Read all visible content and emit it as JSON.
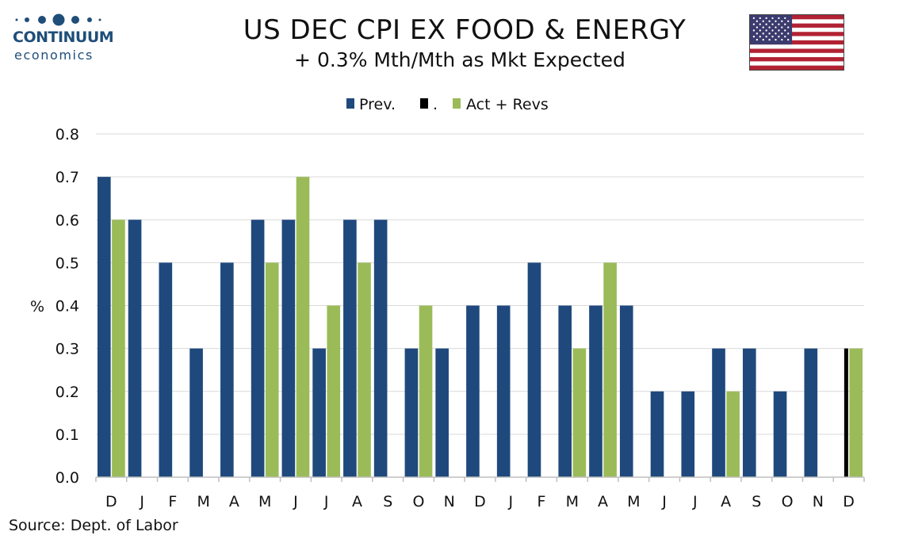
{
  "header": {
    "logo_name": "CONTINUUM",
    "logo_sub": "economics",
    "title": "US DEC CPI EX FOOD & ENERGY",
    "subtitle": "+ 0.3% Mth/Mth as Mkt Expected",
    "flag": "us-flag-icon"
  },
  "footer": {
    "source": "Source: Dept. of Labor"
  },
  "colors": {
    "prev": "#1f497d",
    "marker": "#000000",
    "act": "#9bbb59",
    "grid": "#d9d9d9",
    "axis": "#bfbfbf"
  },
  "chart_data": {
    "type": "bar",
    "ylabel": "%",
    "ylim": [
      0,
      0.8
    ],
    "yticks": [
      "0.0",
      "0.1",
      "0.2",
      "0.3",
      "0.4",
      "0.5",
      "0.6",
      "0.7",
      "0.8"
    ],
    "grid": true,
    "legend_position": "top",
    "categories": [
      "D",
      "J",
      "F",
      "M",
      "A",
      "M",
      "J",
      "J",
      "A",
      "S",
      "O",
      "N",
      "D",
      "J",
      "F",
      "M",
      "A",
      "M",
      "J",
      "J",
      "A",
      "S",
      "O",
      "N",
      "D"
    ],
    "series": [
      {
        "name": "Prev.",
        "color": "#1f497d",
        "values": [
          0.7,
          0.6,
          0.5,
          0.3,
          0.5,
          0.6,
          0.6,
          0.3,
          0.6,
          0.6,
          0.3,
          0.3,
          0.4,
          0.4,
          0.5,
          0.4,
          0.4,
          0.4,
          0.2,
          0.2,
          0.3,
          0.3,
          0.2,
          0.3,
          null
        ]
      },
      {
        "name": ".",
        "color": "#000000",
        "values": [
          null,
          null,
          null,
          null,
          null,
          null,
          null,
          null,
          null,
          null,
          null,
          null,
          null,
          null,
          null,
          null,
          null,
          null,
          null,
          null,
          null,
          null,
          null,
          null,
          0.3
        ]
      },
      {
        "name": "Act + Revs",
        "color": "#9bbb59",
        "values": [
          0.6,
          null,
          null,
          null,
          null,
          0.5,
          0.7,
          0.4,
          0.5,
          null,
          0.4,
          null,
          null,
          null,
          null,
          0.3,
          0.5,
          null,
          null,
          null,
          0.2,
          null,
          null,
          null,
          0.3
        ]
      }
    ]
  }
}
